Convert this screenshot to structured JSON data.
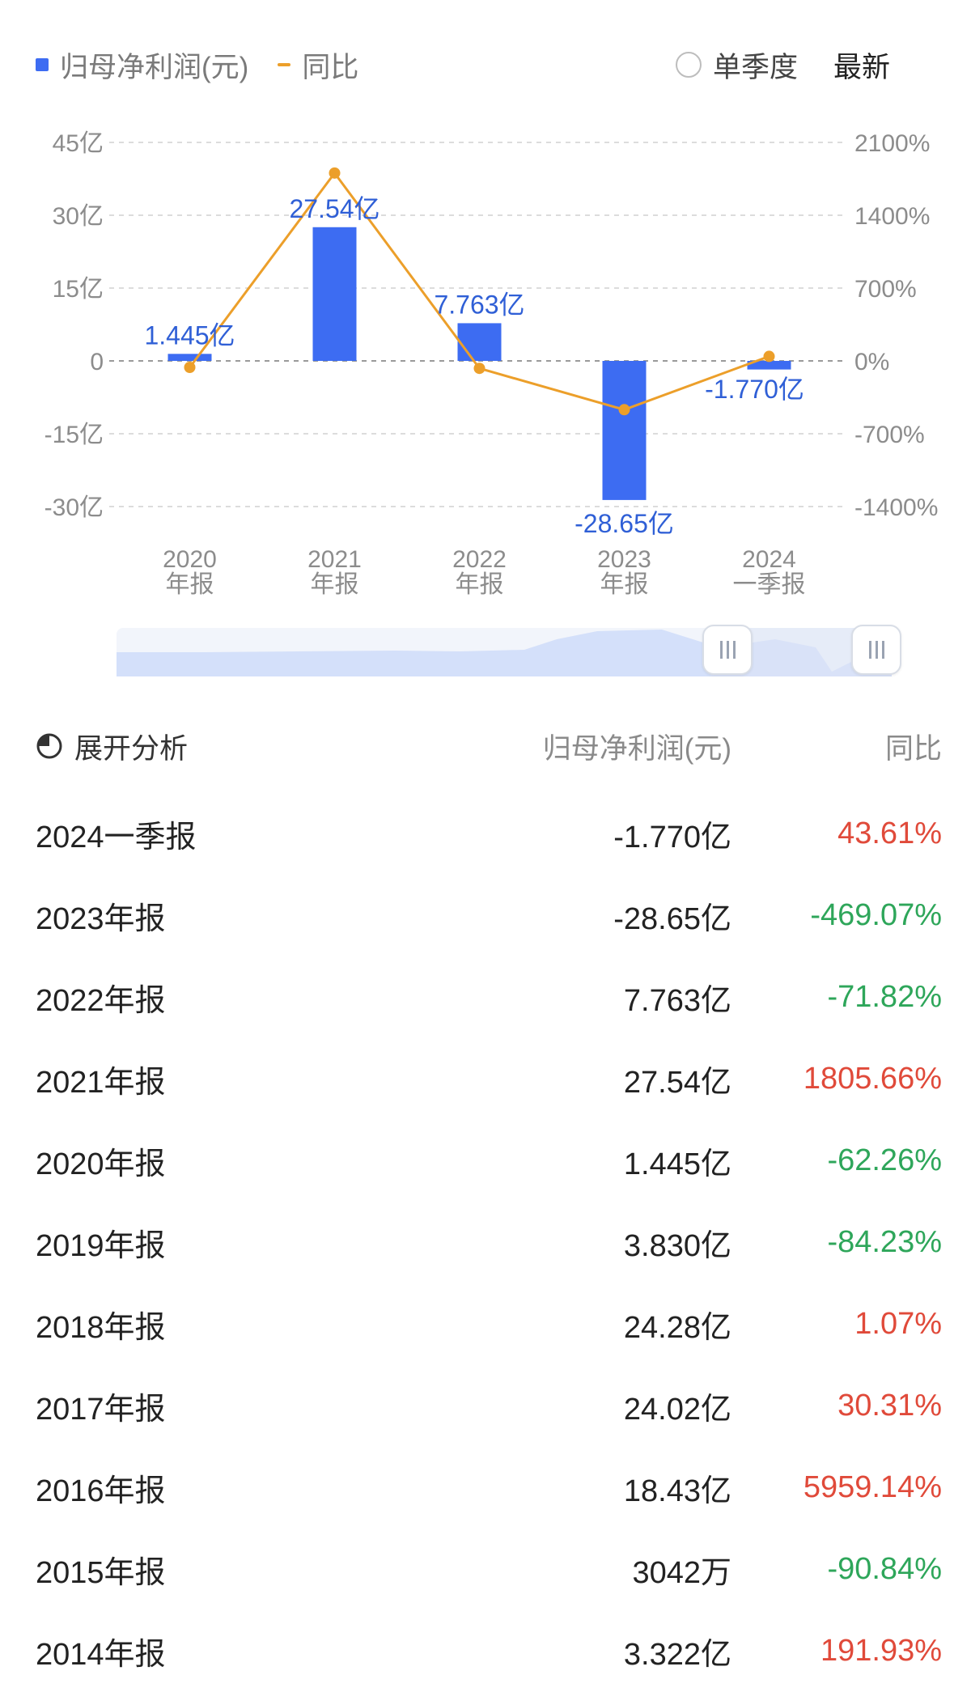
{
  "legend": {
    "profit_label": "归母净利润(元)",
    "yoy_label": "同比"
  },
  "controls": {
    "single_quarter": "单季度",
    "latest": "最新"
  },
  "colors": {
    "bar": "#3d6cf2",
    "line": "#ec9f2a",
    "positive": "#e04a3a",
    "negative": "#2ea65a",
    "label_blue": "#2f5fd6"
  },
  "chart_data": {
    "type": "bar",
    "categories": [
      [
        "2020",
        "年报"
      ],
      [
        "2021",
        "年报"
      ],
      [
        "2022",
        "年报"
      ],
      [
        "2023",
        "年报"
      ],
      [
        "2024",
        "一季报"
      ]
    ],
    "series": [
      {
        "name": "归母净利润(元)",
        "type": "bar",
        "axis": "left",
        "values": [
          1.445,
          27.54,
          7.763,
          -28.65,
          -1.77
        ],
        "labels": [
          "1.445亿",
          "27.54亿",
          "7.763亿",
          "-28.65亿",
          "-1.770亿"
        ]
      },
      {
        "name": "同比",
        "type": "line",
        "axis": "right",
        "values": [
          -62.26,
          1805.66,
          -71.82,
          -469.07,
          43.61
        ]
      }
    ],
    "left_axis": {
      "ticks": [
        45,
        30,
        15,
        0,
        -15,
        -30
      ],
      "tick_labels": [
        "45亿",
        "30亿",
        "15亿",
        "0",
        "-15亿",
        "-30亿"
      ],
      "ylim": [
        -30,
        45
      ]
    },
    "right_axis": {
      "ticks": [
        2100,
        1400,
        700,
        0,
        -700,
        -1400
      ],
      "tick_labels": [
        "2100%",
        "1400%",
        "700%",
        "0%",
        "-700%",
        "-1400%"
      ],
      "ylim": [
        -1400,
        2100
      ]
    },
    "grid": true,
    "legend": "top-left"
  },
  "table": {
    "header": {
      "expand_label": "展开分析",
      "value_col": "归母净利润(元)",
      "yoy_col": "同比"
    },
    "rows": [
      {
        "period": "2024一季报",
        "value": "-1.770亿",
        "yoy": "43.61%",
        "sign": "pos"
      },
      {
        "period": "2023年报",
        "value": "-28.65亿",
        "yoy": "-469.07%",
        "sign": "neg"
      },
      {
        "period": "2022年报",
        "value": "7.763亿",
        "yoy": "-71.82%",
        "sign": "neg"
      },
      {
        "period": "2021年报",
        "value": "27.54亿",
        "yoy": "1805.66%",
        "sign": "pos"
      },
      {
        "period": "2020年报",
        "value": "1.445亿",
        "yoy": "-62.26%",
        "sign": "neg"
      },
      {
        "period": "2019年报",
        "value": "3.830亿",
        "yoy": "-84.23%",
        "sign": "neg"
      },
      {
        "period": "2018年报",
        "value": "24.28亿",
        "yoy": "1.07%",
        "sign": "pos"
      },
      {
        "period": "2017年报",
        "value": "24.02亿",
        "yoy": "30.31%",
        "sign": "pos"
      },
      {
        "period": "2016年报",
        "value": "18.43亿",
        "yoy": "5959.14%",
        "sign": "pos"
      },
      {
        "period": "2015年报",
        "value": "3042万",
        "yoy": "-90.84%",
        "sign": "neg"
      },
      {
        "period": "2014年报",
        "value": "3.322亿",
        "yoy": "191.93%",
        "sign": "pos"
      }
    ]
  }
}
